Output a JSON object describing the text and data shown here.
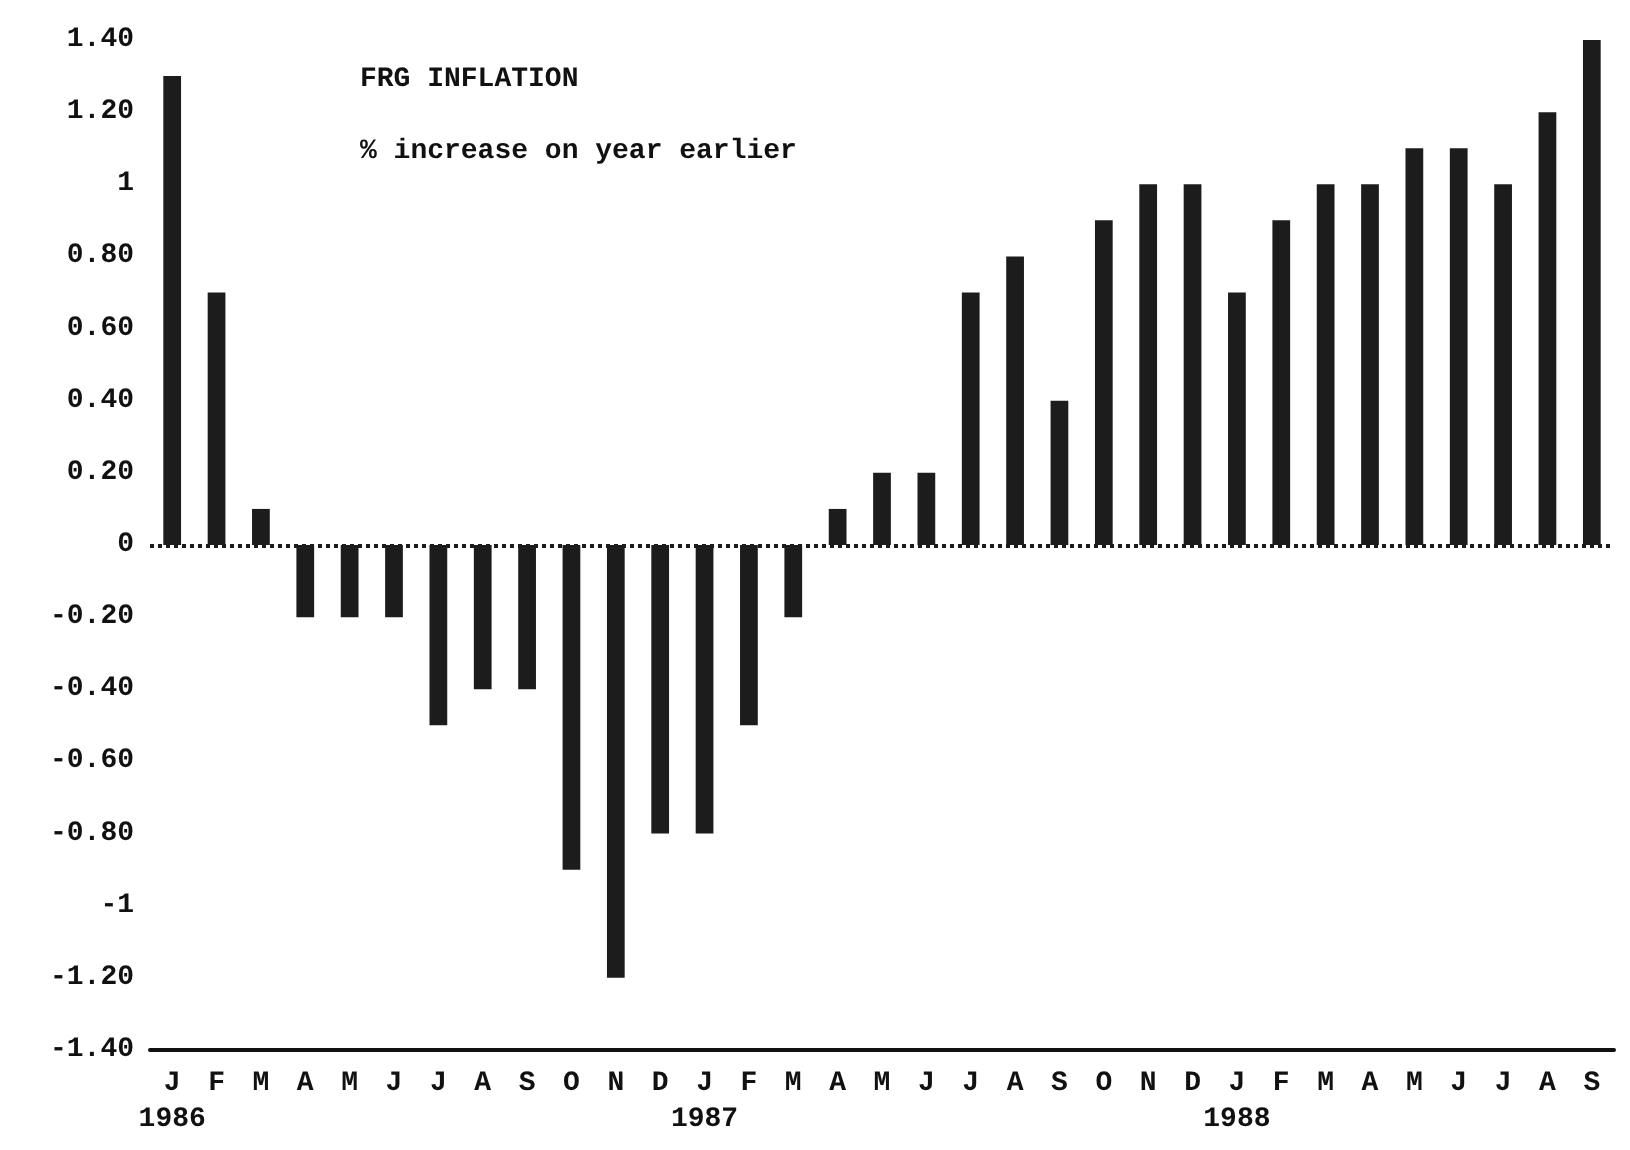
{
  "chart_data": {
    "type": "bar",
    "title": "FRG INFLATION",
    "subtitle": "% increase on year earlier",
    "categories": [
      "J\n1986",
      "F",
      "M",
      "A",
      "M",
      "J",
      "J",
      "A",
      "S",
      "O",
      "N",
      "D",
      "J\n1987",
      "F",
      "M",
      "A",
      "M",
      "J",
      "J",
      "A",
      "S",
      "O",
      "N",
      "D",
      "J\n1988",
      "F",
      "M",
      "A",
      "M",
      "J",
      "J",
      "A",
      "S"
    ],
    "series": [
      {
        "color": "#1c1c1c",
        "values": [
          1.3,
          0.7,
          0.1,
          -0.2,
          -0.2,
          -0.2,
          -0.5,
          -0.4,
          -0.4,
          -0.9,
          -1.2,
          -0.8,
          -0.8,
          -0.5,
          -0.2,
          0.1,
          0.2,
          0.2,
          0.7,
          0.8,
          0.4,
          0.9,
          1.0,
          1.0,
          0.7,
          0.9,
          1.0,
          1.0,
          1.1,
          1.1,
          1.0,
          1.2,
          1.4
        ]
      }
    ],
    "ylim": [
      -1.4,
      1.4
    ],
    "yticks": [
      {
        "value": -1.4,
        "label": "-1.40"
      },
      {
        "value": -1.2,
        "label": "-1.20"
      },
      {
        "value": -1,
        "label": "-1"
      },
      {
        "value": -0.8,
        "label": "-0.80"
      },
      {
        "value": -0.6,
        "label": "-0.60"
      },
      {
        "value": -0.4,
        "label": "-0.40"
      },
      {
        "value": -0.2,
        "label": "-0.20"
      },
      {
        "value": 0,
        "label": "0"
      },
      {
        "value": 0.2,
        "label": "0.20"
      },
      {
        "value": 0.4,
        "label": "0.40"
      },
      {
        "value": 0.6,
        "label": "0.60"
      },
      {
        "value": 0.8,
        "label": "0.80"
      },
      {
        "value": 1,
        "label": "1"
      },
      {
        "value": 1.2,
        "label": "1.20"
      },
      {
        "value": 1.4,
        "label": "1.40"
      }
    ],
    "ref_lines": [
      {
        "axis": "y",
        "value": 0,
        "line_style": "dotted",
        "color": "#1c1c1c"
      }
    ],
    "grid": false
  }
}
